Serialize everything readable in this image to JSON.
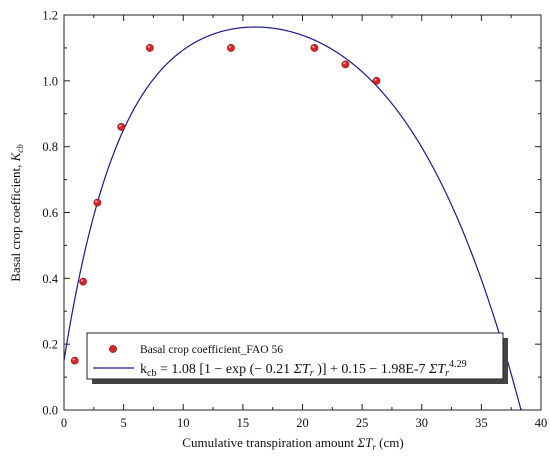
{
  "chart_data": {
    "type": "scatter",
    "title": "",
    "xlabel": "Cumulative transpiration amount ΣTᵣ (cm)",
    "xlabel_parts": {
      "prefix": "Cumulative transpiration amount ",
      "symbol": "ΣT",
      "subscript": "r",
      "suffix": " (cm)"
    },
    "ylabel_parts": {
      "prefix": "Basal crop coefficient, ",
      "symbol": "K",
      "subscript": "cb"
    },
    "xlim": [
      0,
      40
    ],
    "ylim": [
      0,
      1.2
    ],
    "xticks": [
      "0",
      "5",
      "10",
      "15",
      "20",
      "25",
      "30",
      "35",
      "40"
    ],
    "yticks": [
      "0.0",
      "0.2",
      "0.4",
      "0.6",
      "0.8",
      "1.0",
      "1.2"
    ],
    "grid": false,
    "legend_position": "bottom-left",
    "series": [
      {
        "name": "Basal crop coefficient_FAO 56",
        "kind": "scatter",
        "color": "#d62728",
        "points": [
          {
            "x": 0.9,
            "y": 0.15
          },
          {
            "x": 1.6,
            "y": 0.39
          },
          {
            "x": 2.8,
            "y": 0.63
          },
          {
            "x": 4.8,
            "y": 0.86
          },
          {
            "x": 7.2,
            "y": 1.1
          },
          {
            "x": 14.0,
            "y": 1.1
          },
          {
            "x": 21.0,
            "y": 1.1
          },
          {
            "x": 23.6,
            "y": 1.05
          },
          {
            "x": 26.2,
            "y": 1.0
          }
        ]
      },
      {
        "kind": "line",
        "color": "#1a1a8c",
        "equation_parts": {
          "lhs": "k",
          "lhs_sub": "cb",
          "rhs_a": " = 1.08 [1 − exp (− 0.21 ",
          "sym1": "ΣT",
          "sub1": "r",
          "rhs_b": " )] + 0.15 − 1.98E-7 ",
          "sym2": "ΣT",
          "sub2": "r",
          "sup2": "4.29"
        },
        "params": {
          "a": 1.08,
          "b": 0.21,
          "c": 0.15,
          "d": 1.98e-07,
          "e": 4.29
        },
        "x_range": [
          0,
          40
        ]
      }
    ]
  }
}
